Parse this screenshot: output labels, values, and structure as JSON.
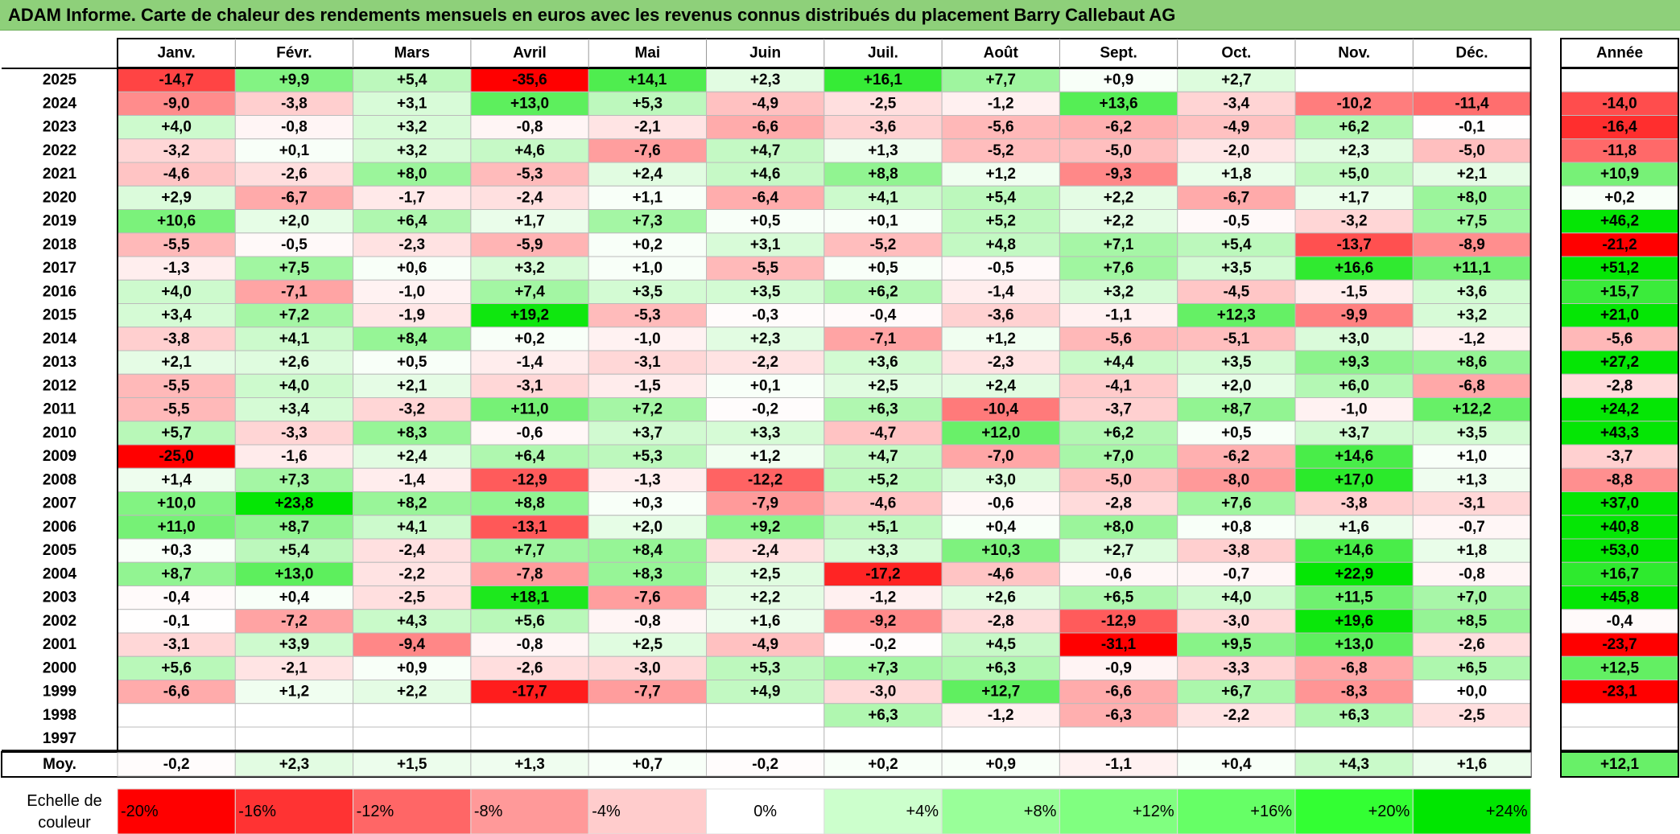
{
  "title": "ADAM Informe. Carte de chaleur des rendements mensuels en euros avec les revenus connus distribués du placement Barry Callebaut AG",
  "chart_data": {
    "type": "heatmap",
    "columns": [
      "Janv.",
      "Févr.",
      "Mars",
      "Avril",
      "Mai",
      "Juin",
      "Juil.",
      "Août",
      "Sept.",
      "Oct.",
      "Nov.",
      "Déc."
    ],
    "annual_header": "Année",
    "rows": [
      {
        "year": "2025",
        "values": [
          "-14,7",
          "+9,9",
          "+5,4",
          "-35,6",
          "+14,1",
          "+2,3",
          "+16,1",
          "+7,7",
          "+0,9",
          "+2,7",
          "",
          ""
        ],
        "annual": ""
      },
      {
        "year": "2024",
        "values": [
          "-9,0",
          "-3,8",
          "+3,1",
          "+13,0",
          "+5,3",
          "-4,9",
          "-2,5",
          "-1,2",
          "+13,6",
          "-3,4",
          "-10,2",
          "-11,4"
        ],
        "annual": "-14,0"
      },
      {
        "year": "2023",
        "values": [
          "+4,0",
          "-0,8",
          "+3,2",
          "-0,8",
          "-2,1",
          "-6,6",
          "-3,6",
          "-5,6",
          "-6,2",
          "-4,9",
          "+6,2",
          "-0,1"
        ],
        "annual": "-16,4"
      },
      {
        "year": "2022",
        "values": [
          "-3,2",
          "+0,1",
          "+3,2",
          "+4,6",
          "-7,6",
          "+4,7",
          "+1,3",
          "-5,2",
          "-5,0",
          "-2,0",
          "+2,3",
          "-5,0"
        ],
        "annual": "-11,8"
      },
      {
        "year": "2021",
        "values": [
          "-4,6",
          "-2,6",
          "+8,0",
          "-5,3",
          "+2,4",
          "+4,6",
          "+8,8",
          "+1,2",
          "-9,3",
          "+1,8",
          "+5,0",
          "+2,1"
        ],
        "annual": "+10,9"
      },
      {
        "year": "2020",
        "values": [
          "+2,9",
          "-6,7",
          "-1,7",
          "-2,4",
          "+1,1",
          "-6,4",
          "+4,1",
          "+5,4",
          "+2,2",
          "-6,7",
          "+1,7",
          "+8,0"
        ],
        "annual": "+0,2"
      },
      {
        "year": "2019",
        "values": [
          "+10,6",
          "+2,0",
          "+6,4",
          "+1,7",
          "+7,3",
          "+0,5",
          "+0,1",
          "+5,2",
          "+2,2",
          "-0,5",
          "-3,2",
          "+7,5"
        ],
        "annual": "+46,2"
      },
      {
        "year": "2018",
        "values": [
          "-5,5",
          "-0,5",
          "-2,3",
          "-5,9",
          "+0,2",
          "+3,1",
          "-5,2",
          "+4,8",
          "+7,1",
          "+5,4",
          "-13,7",
          "-8,9"
        ],
        "annual": "-21,2"
      },
      {
        "year": "2017",
        "values": [
          "-1,3",
          "+7,5",
          "+0,6",
          "+3,2",
          "+1,0",
          "-5,5",
          "+0,5",
          "-0,5",
          "+7,6",
          "+3,5",
          "+16,6",
          "+11,1"
        ],
        "annual": "+51,2"
      },
      {
        "year": "2016",
        "values": [
          "+4,0",
          "-7,1",
          "-1,0",
          "+7,4",
          "+3,5",
          "+3,5",
          "+6,2",
          "-1,4",
          "+3,2",
          "-4,5",
          "-1,5",
          "+3,6"
        ],
        "annual": "+15,7"
      },
      {
        "year": "2015",
        "values": [
          "+3,4",
          "+7,2",
          "-1,9",
          "+19,2",
          "-5,3",
          "-0,3",
          "-0,4",
          "-3,6",
          "-1,1",
          "+12,3",
          "-9,9",
          "+3,2"
        ],
        "annual": "+21,0"
      },
      {
        "year": "2014",
        "values": [
          "-3,8",
          "+4,1",
          "+8,4",
          "+0,2",
          "-1,0",
          "+2,3",
          "-7,1",
          "+1,2",
          "-5,6",
          "-5,1",
          "+3,0",
          "-1,2"
        ],
        "annual": "-5,6"
      },
      {
        "year": "2013",
        "values": [
          "+2,1",
          "+2,6",
          "+0,5",
          "-1,4",
          "-3,1",
          "-2,2",
          "+3,6",
          "-2,3",
          "+4,4",
          "+3,5",
          "+9,3",
          "+8,6"
        ],
        "annual": "+27,2"
      },
      {
        "year": "2012",
        "values": [
          "-5,5",
          "+4,0",
          "+2,1",
          "-3,1",
          "-1,5",
          "+0,1",
          "+2,5",
          "+2,4",
          "-4,1",
          "+2,0",
          "+6,0",
          "-6,8"
        ],
        "annual": "-2,8"
      },
      {
        "year": "2011",
        "values": [
          "-5,5",
          "+3,4",
          "-3,2",
          "+11,0",
          "+7,2",
          "-0,2",
          "+6,3",
          "-10,4",
          "-3,7",
          "+8,7",
          "-1,0",
          "+12,2"
        ],
        "annual": "+24,2"
      },
      {
        "year": "2010",
        "values": [
          "+5,7",
          "-3,3",
          "+8,3",
          "-0,6",
          "+3,7",
          "+3,3",
          "-4,7",
          "+12,0",
          "+6,2",
          "+0,5",
          "+3,7",
          "+3,5"
        ],
        "annual": "+43,3"
      },
      {
        "year": "2009",
        "values": [
          "-25,0",
          "-1,6",
          "+2,4",
          "+6,4",
          "+5,3",
          "+1,2",
          "+4,7",
          "-7,0",
          "+7,0",
          "-6,2",
          "+14,6",
          "+1,0"
        ],
        "annual": "-3,7"
      },
      {
        "year": "2008",
        "values": [
          "+1,4",
          "+7,3",
          "-1,4",
          "-12,9",
          "-1,3",
          "-12,2",
          "+5,2",
          "+3,0",
          "-5,0",
          "-8,0",
          "+17,0",
          "+1,3"
        ],
        "annual": "-8,8"
      },
      {
        "year": "2007",
        "values": [
          "+10,0",
          "+23,8",
          "+8,2",
          "+8,8",
          "+0,3",
          "-7,9",
          "-4,6",
          "-0,6",
          "-2,8",
          "+7,6",
          "-3,8",
          "-3,1"
        ],
        "annual": "+37,0"
      },
      {
        "year": "2006",
        "values": [
          "+11,0",
          "+8,7",
          "+4,1",
          "-13,1",
          "+2,0",
          "+9,2",
          "+5,1",
          "+0,4",
          "+8,0",
          "+0,8",
          "+1,6",
          "-0,7"
        ],
        "annual": "+40,8"
      },
      {
        "year": "2005",
        "values": [
          "+0,3",
          "+5,4",
          "-2,4",
          "+7,7",
          "+8,4",
          "-2,4",
          "+3,3",
          "+10,3",
          "+2,7",
          "-3,8",
          "+14,6",
          "+1,8"
        ],
        "annual": "+53,0"
      },
      {
        "year": "2004",
        "values": [
          "+8,7",
          "+13,0",
          "-2,2",
          "-7,8",
          "+8,3",
          "+2,5",
          "-17,2",
          "-4,6",
          "-0,6",
          "-0,7",
          "+22,9",
          "-0,8"
        ],
        "annual": "+16,7"
      },
      {
        "year": "2003",
        "values": [
          "-0,4",
          "+0,4",
          "-2,5",
          "+18,1",
          "-7,6",
          "+2,2",
          "-1,2",
          "+2,6",
          "+6,5",
          "+4,0",
          "+11,5",
          "+7,0"
        ],
        "annual": "+45,8"
      },
      {
        "year": "2002",
        "values": [
          "-0,1",
          "-7,2",
          "+4,3",
          "+5,6",
          "-0,8",
          "+1,6",
          "-9,2",
          "-2,8",
          "-12,9",
          "-3,0",
          "+19,6",
          "+8,5"
        ],
        "annual": "-0,4"
      },
      {
        "year": "2001",
        "values": [
          "-3,1",
          "+3,9",
          "-9,4",
          "-0,8",
          "+2,5",
          "-4,9",
          "-0,2",
          "+4,5",
          "-31,1",
          "+9,5",
          "+13,0",
          "-2,6"
        ],
        "annual": "-23,7"
      },
      {
        "year": "2000",
        "values": [
          "+5,6",
          "-2,1",
          "+0,9",
          "-2,6",
          "-3,0",
          "+5,3",
          "+7,3",
          "+6,3",
          "-0,9",
          "-3,3",
          "-6,8",
          "+6,5"
        ],
        "annual": "+12,5"
      },
      {
        "year": "1999",
        "values": [
          "-6,6",
          "+1,2",
          "+2,2",
          "-17,7",
          "-7,7",
          "+4,9",
          "-3,0",
          "+12,7",
          "-6,6",
          "+6,7",
          "-8,3",
          "+0,0"
        ],
        "annual": "-23,1"
      },
      {
        "year": "1998",
        "values": [
          "",
          "",
          "",
          "",
          "",
          "",
          "+6,3",
          "-1,2",
          "-6,3",
          "-2,2",
          "+6,3",
          "-2,5"
        ],
        "annual": ""
      },
      {
        "year": "1997",
        "values": [
          "",
          "",
          "",
          "",
          "",
          "",
          "",
          "",
          "",
          "",
          "",
          ""
        ],
        "annual": ""
      }
    ],
    "average": {
      "label": "Moy.",
      "values": [
        "-0,2",
        "+2,3",
        "+1,5",
        "+1,3",
        "+0,7",
        "-0,2",
        "+0,2",
        "+0,9",
        "-1,1",
        "+0,4",
        "+4,3",
        "+1,6"
      ],
      "annual": "+12,1"
    },
    "color_scale": {
      "label_line1": "Echelle de",
      "label_line2": "couleur",
      "stops": [
        {
          "label": "-20%",
          "value": -20,
          "color": "#ff0000"
        },
        {
          "label": "-16%",
          "value": -16,
          "color": "#ff3333"
        },
        {
          "label": "-12%",
          "value": -12,
          "color": "#ff6666"
        },
        {
          "label": "-8%",
          "value": -8,
          "color": "#ff9999"
        },
        {
          "label": "-4%",
          "value": -4,
          "color": "#ffcccc"
        },
        {
          "label": "0%",
          "value": 0,
          "color": "#ffffff"
        },
        {
          "label": "+4%",
          "value": 4,
          "color": "#ccffcc"
        },
        {
          "label": "+8%",
          "value": 8,
          "color": "#99ff99"
        },
        {
          "label": "+12%",
          "value": 12,
          "color": "#80ff80"
        },
        {
          "label": "+16%",
          "value": 16,
          "color": "#66ff66"
        },
        {
          "label": "+20%",
          "value": 20,
          "color": "#33ff33"
        },
        {
          "label": "+24%",
          "value": 24,
          "color": "#00e600"
        }
      ]
    }
  }
}
